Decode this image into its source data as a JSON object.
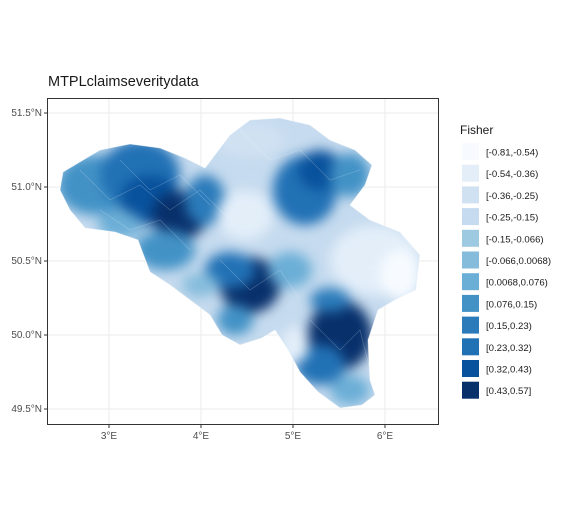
{
  "chart_data": {
    "type": "choropleth",
    "title": "MTPLclaimseveritydata",
    "xlabel": "",
    "ylabel": "",
    "x_ticks": [
      "3°E",
      "4°E",
      "5°E",
      "6°E"
    ],
    "x_tick_values": [
      3,
      4,
      5,
      6
    ],
    "y_ticks": [
      "49.5°N",
      "50.0°N",
      "50.5°N",
      "51.0°N",
      "51.5°N"
    ],
    "y_tick_values": [
      49.5,
      50.0,
      50.5,
      51.0,
      51.5
    ],
    "xlim": [
      2.4,
      6.5
    ],
    "ylim": [
      49.4,
      51.6
    ],
    "grid": true,
    "legend_placement": "right",
    "legend": {
      "title": "Fisher",
      "entries": [
        {
          "label": "[-0.81,-0.54)",
          "color": "#f7fbff"
        },
        {
          "label": "[-0.54,-0.36)",
          "color": "#e3eef9"
        },
        {
          "label": "[-0.36,-0.25)",
          "color": "#d0e1f2"
        },
        {
          "label": "[-0.25,-0.15)",
          "color": "#c6dbef"
        },
        {
          "label": "[-0.15,-0.066)",
          "color": "#9ecae1"
        },
        {
          "label": "[-0.066,0.0068)",
          "color": "#85bcdb"
        },
        {
          "label": "[0.0068,0.076)",
          "color": "#6baed6"
        },
        {
          "label": "[0.076,0.15)",
          "color": "#4292c6"
        },
        {
          "label": "[0.15,0.23)",
          "color": "#2b7bba"
        },
        {
          "label": "[0.23,0.32)",
          "color": "#2171b5"
        },
        {
          "label": "[0.32,0.43)",
          "color": "#08519c"
        },
        {
          "label": "[0.43,0.57]",
          "color": "#08306b"
        }
      ]
    }
  }
}
